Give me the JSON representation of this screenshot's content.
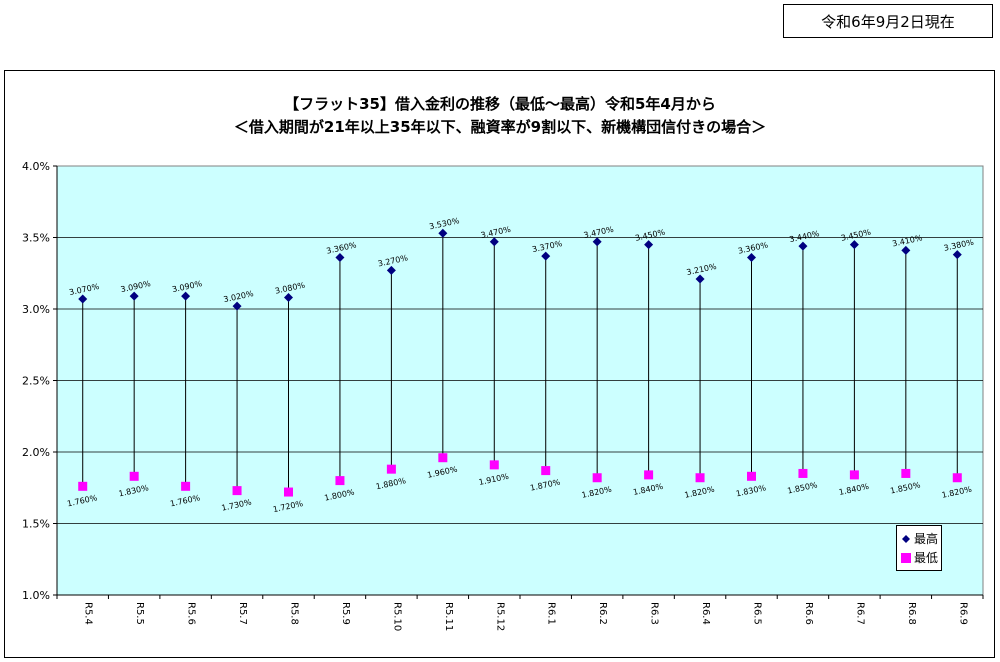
{
  "header": {
    "date_label": "令和6年9月2日現在"
  },
  "chart_data": {
    "type": "line",
    "title": "【フラット35】借入金利の推移（最低～最高）令和5年4月から",
    "subtitle": "＜借入期間が21年以上35年以下、融資率が9割以下、新機構団信付きの場合＞",
    "categories": [
      "R5.4",
      "R5.5",
      "R5.6",
      "R5.7",
      "R5.8",
      "R5.9",
      "R5.10",
      "R5.11",
      "R5.12",
      "R6.1",
      "R6.2",
      "R6.3",
      "R6.4",
      "R6.5",
      "R6.6",
      "R6.7",
      "R6.8",
      "R6.9"
    ],
    "series": [
      {
        "name": "最高",
        "color": "#000080",
        "marker": "diamond",
        "values": [
          3.07,
          3.09,
          3.09,
          3.02,
          3.08,
          3.36,
          3.27,
          3.53,
          3.47,
          3.37,
          3.47,
          3.45,
          3.21,
          3.36,
          3.44,
          3.45,
          3.41,
          3.38
        ],
        "labels": [
          "3.070%",
          "3.090%",
          "3.090%",
          "3.020%",
          "3.080%",
          "3.360%",
          "3.270%",
          "3.530%",
          "3.470%",
          "3.370%",
          "3.470%",
          "3.450%",
          "3.210%",
          "3.360%",
          "3.440%",
          "3.450%",
          "3.410%",
          "3.380%"
        ]
      },
      {
        "name": "最低",
        "color": "#ff00ff",
        "marker": "square",
        "values": [
          1.76,
          1.83,
          1.76,
          1.73,
          1.72,
          1.8,
          1.88,
          1.96,
          1.91,
          1.87,
          1.82,
          1.84,
          1.82,
          1.83,
          1.85,
          1.84,
          1.85,
          1.82
        ],
        "labels": [
          "1.760%",
          "1.830%",
          "1.760%",
          "1.730%",
          "1.720%",
          "1.800%",
          "1.880%",
          "1.960%",
          "1.910%",
          "1.870%",
          "1.820%",
          "1.840%",
          "1.820%",
          "1.830%",
          "1.850%",
          "1.840%",
          "1.850%",
          "1.820%"
        ]
      }
    ],
    "y_ticks": [
      "1.0%",
      "1.5%",
      "2.0%",
      "2.5%",
      "3.0%",
      "3.5%",
      "4.0%"
    ],
    "ylim": [
      1.0,
      4.0
    ],
    "grid": true,
    "high_low_lines": true,
    "plot_background": "#ccffff",
    "legend_position": "bottom-right"
  }
}
